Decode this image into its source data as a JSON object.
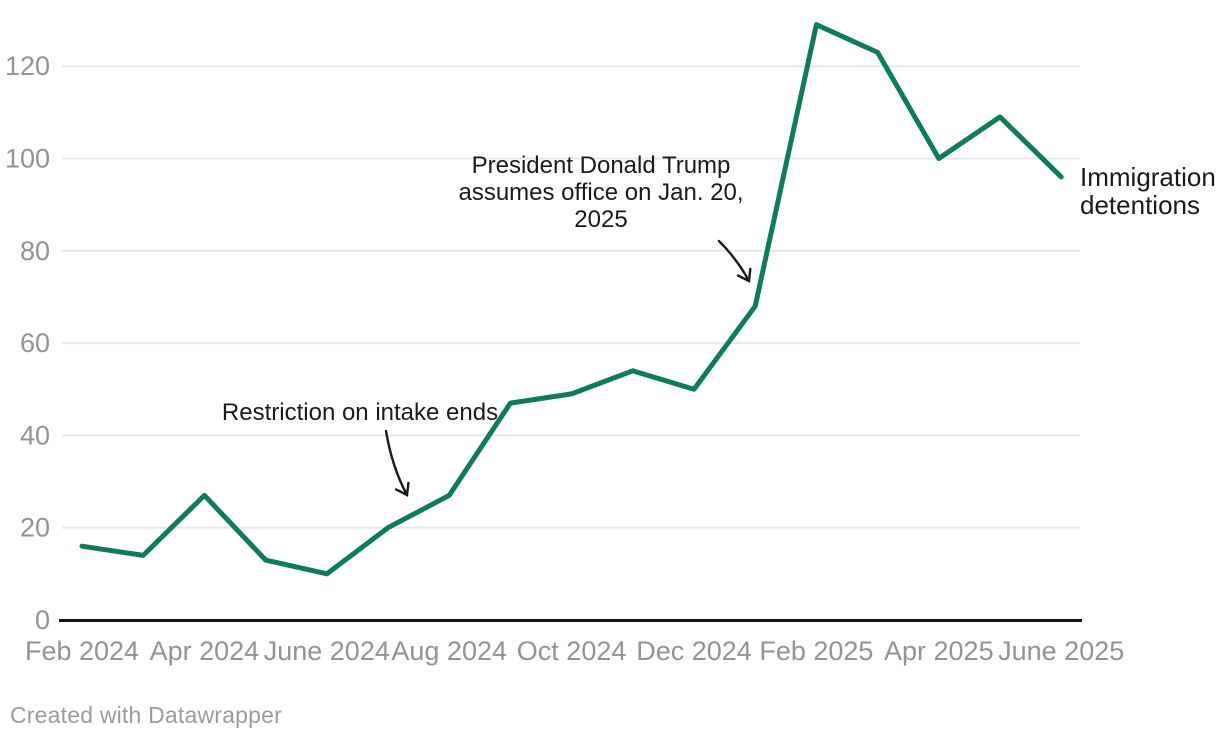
{
  "chart_data": {
    "type": "line",
    "title": "",
    "x": [
      "Feb 2024",
      "Mar 2024",
      "Apr 2024",
      "May 2024",
      "June 2024",
      "July 2024",
      "Aug 2024",
      "Sep 2024",
      "Oct 2024",
      "Nov 2024",
      "Dec 2024",
      "Jan 2025",
      "Feb 2025",
      "Mar 2025",
      "Apr 2025",
      "May 2025",
      "June 2025"
    ],
    "series": [
      {
        "name": "Immigration detentions",
        "values": [
          16,
          14,
          27,
          13,
          10,
          20,
          27,
          47,
          49,
          54,
          50,
          68,
          129,
          123,
          100,
          109,
          96
        ]
      }
    ],
    "series_label_lines": [
      "Immigration",
      "detentions"
    ],
    "x_tick_labels": [
      "Feb 2024",
      "Apr 2024",
      "June 2024",
      "Aug 2024",
      "Oct 2024",
      "Dec 2024",
      "Feb 2025",
      "Apr 2025",
      "June 2025"
    ],
    "y_ticks": [
      0,
      20,
      40,
      60,
      80,
      100,
      120
    ],
    "ylim": [
      0,
      130
    ],
    "grid": "horizontal",
    "legend_position": "right-of-line-end",
    "annotations": [
      {
        "id": "restriction",
        "lines": [
          "Restriction on intake ends"
        ],
        "points_to": "July 2024"
      },
      {
        "id": "trump",
        "lines": [
          "President Donald Trump",
          "assumes office on Jan. 20,",
          "2025"
        ],
        "points_to": "Jan 2025"
      }
    ]
  },
  "colors": {
    "line": "#0d7c5c",
    "annotation_text": "#1a1a1a",
    "axis_label": "#939393",
    "gridline": "#e8e8e8",
    "axis_line": "#141414",
    "credit_text": "#9c9c9c"
  },
  "footer": {
    "credit": "Created with Datawrapper"
  }
}
